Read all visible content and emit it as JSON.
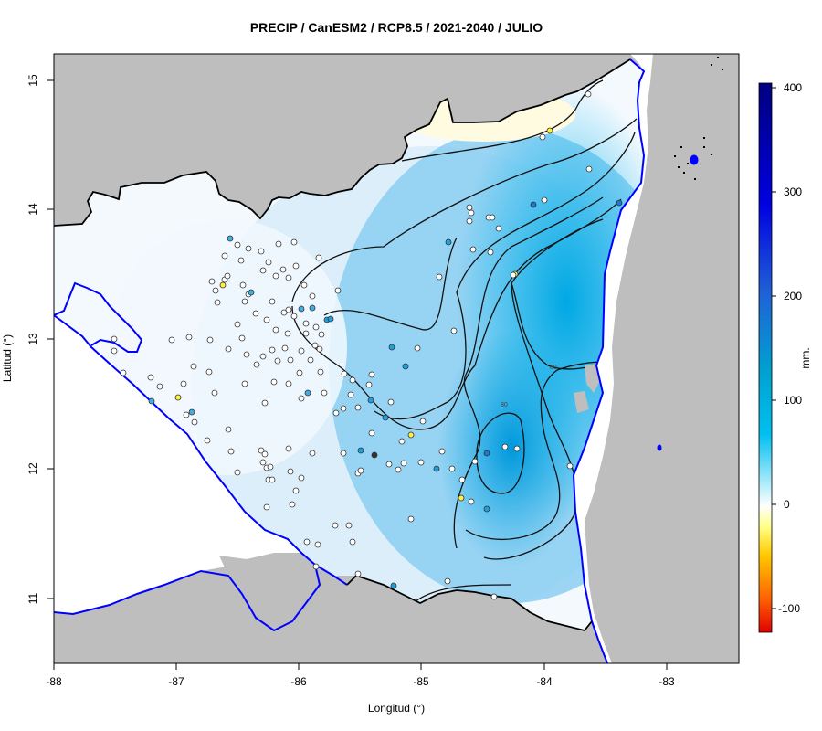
{
  "title": "PRECIP / CanESM2 / RCP8.5 / 2021-2040 / JULIO",
  "axes": {
    "xlabel": "Longitud (°)",
    "ylabel": "Latitud (°)",
    "x_ticks": [
      "-88",
      "-87",
      "-86",
      "-85",
      "-84",
      "-83"
    ],
    "y_ticks": [
      "11",
      "12",
      "13",
      "14",
      "15"
    ],
    "xlim": [
      -88,
      -82.4
    ],
    "ylim": [
      10.5,
      15.2
    ]
  },
  "colorbar": {
    "unit": "mm.",
    "ticks": [
      "400",
      "300",
      "200",
      "100",
      "0",
      "-100"
    ],
    "range": [
      -120,
      400
    ],
    "colors": [
      "#e00000",
      "#ff8000",
      "#ffff00",
      "#ffffff",
      "#00b4f0",
      "#0000cc",
      "#000080"
    ]
  },
  "contour_labels": [
    "80",
    "80"
  ],
  "colors": {
    "land_outside": "#bebebe",
    "sea": "#ffffff",
    "coast": "#0000ff",
    "border": "#000000"
  }
}
